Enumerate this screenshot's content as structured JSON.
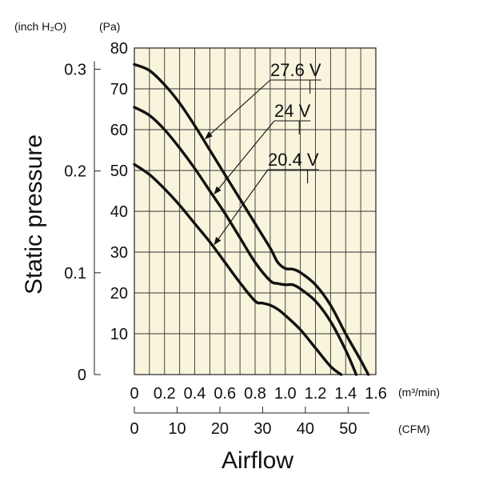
{
  "chart_data": {
    "type": "line",
    "title": "",
    "xlabel": "Airflow",
    "ylabel": "Static pressure",
    "grid": true,
    "background": "#f9f4dc",
    "line_color": "#111111",
    "x_unit": "(m³/min)",
    "x2_unit": "(CFM)",
    "y_unit": "(Pa)",
    "y2_unit": "(inch H₂O)",
    "xlim": [
      0,
      1.6
    ],
    "ylim": [
      0,
      80
    ],
    "x_ticks": [
      "0",
      "0.2",
      "0.4",
      "0.6",
      "0.8",
      "1.0",
      "1.2",
      "1.4",
      "1.6"
    ],
    "x_tick_values": [
      0,
      0.2,
      0.4,
      0.6,
      0.8,
      1.0,
      1.2,
      1.4,
      1.6
    ],
    "x2_ticks": [
      "0",
      "10",
      "20",
      "30",
      "40",
      "50"
    ],
    "x2_tick_values": [
      0,
      10,
      20,
      30,
      40,
      50
    ],
    "x2_per_x": 35.3,
    "y_ticks": [
      "10",
      "20",
      "30",
      "40",
      "50",
      "60",
      "70",
      "80"
    ],
    "y_tick_values": [
      10,
      20,
      30,
      40,
      50,
      60,
      70,
      80
    ],
    "y2_ticks": [
      "0",
      "0.1",
      "0.2",
      "0.3"
    ],
    "y2_tick_values": [
      0,
      0.1,
      0.2,
      0.3
    ],
    "y2_per_y": 0.00401,
    "series": [
      {
        "name": "27.6 V",
        "x": [
          0,
          0.1,
          0.2,
          0.3,
          0.4,
          0.5,
          0.6,
          0.7,
          0.8,
          0.9,
          0.95,
          1.0,
          1.05,
          1.1,
          1.2,
          1.3,
          1.4,
          1.5,
          1.55
        ],
        "y": [
          76,
          74.5,
          71,
          66.5,
          61,
          55,
          49,
          43,
          37,
          31,
          27.5,
          26,
          25.8,
          25,
          22,
          17,
          10,
          3.5,
          0
        ]
      },
      {
        "name": "24 V",
        "x": [
          0,
          0.1,
          0.2,
          0.3,
          0.4,
          0.5,
          0.6,
          0.7,
          0.8,
          0.9,
          0.95,
          1.0,
          1.05,
          1.1,
          1.2,
          1.3,
          1.4,
          1.47
        ],
        "y": [
          65.5,
          63.5,
          60,
          55.5,
          50.5,
          45,
          39.5,
          33.5,
          27.5,
          23,
          22.3,
          22,
          22,
          21,
          18,
          13,
          6,
          0
        ]
      },
      {
        "name": "20.4 V",
        "x": [
          0,
          0.1,
          0.2,
          0.3,
          0.4,
          0.5,
          0.6,
          0.7,
          0.8,
          0.85,
          0.9,
          0.95,
          1.0,
          1.1,
          1.2,
          1.3,
          1.37
        ],
        "y": [
          51.5,
          49,
          45.5,
          41.5,
          37,
          32.5,
          27.5,
          22.5,
          18,
          17.5,
          17,
          16,
          14.5,
          11,
          6.5,
          2,
          0
        ]
      }
    ],
    "annotations": [
      {
        "text": "27.6 V",
        "series": "27.6 V",
        "points_to_x": 0.46
      },
      {
        "text": "24 V",
        "series": "24 V",
        "points_to_x": 0.52
      },
      {
        "text": "20.4 V",
        "series": "20.4 V",
        "points_to_x": 0.52
      }
    ]
  }
}
